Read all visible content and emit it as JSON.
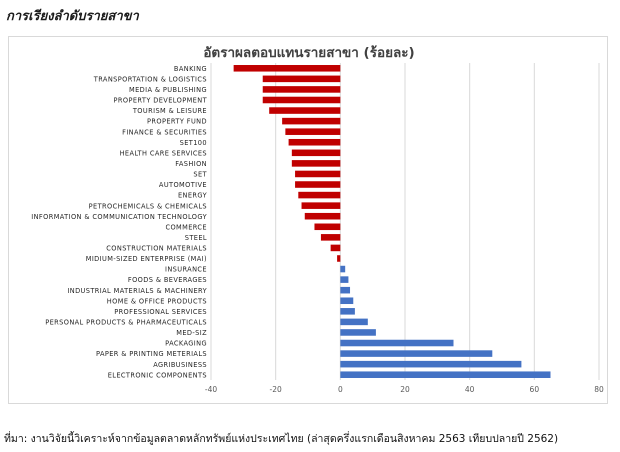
{
  "heading": "การเรียงลำดับรายสาขา",
  "source_note": "ที่มา: งานวิจัยนี้วิเคราะห์จากข้อมูลตลาดหลักทรัพย์แห่งประเทศไทย (ล่าสุดครึ่งแรกเดือนสิงหาคม 2563 เทียบปลายปี 2562)",
  "colors": {
    "negative": "#c00000",
    "positive": "#4472c4",
    "grid": "#d9d9d9",
    "axis_text": "#595959"
  },
  "chart_data": {
    "type": "bar",
    "orientation": "horizontal",
    "title": "อัตราผลตอบแทนรายสาขา (ร้อยละ)",
    "xlim": [
      -40,
      80
    ],
    "x_ticks": [
      "-40",
      "-20",
      "0",
      "20",
      "40",
      "60",
      "80"
    ],
    "x_tick_values": [
      -40,
      -20,
      0,
      20,
      40,
      60,
      80
    ],
    "grid": "vertical",
    "categories": [
      "BANKING",
      "TRANSPORTATION & LOGISTICS",
      "MEDIA & PUBLISHING",
      "PROPERTY DEVELOPMENT",
      "TOURISM & LEISURE",
      "PROPERTY FUND",
      "FINANCE & SECURITIES",
      "SET100",
      "HEALTH CARE SERVICES",
      "FASHION",
      "SET",
      "AUTOMOTIVE",
      "ENERGY",
      "PETROCHEMICALS & CHEMICALS",
      "INFORMATION & COMMUNICATION TECHNOLOGY",
      "COMMERCE",
      "STEEL",
      "CONSTRUCTION MATERIALS",
      "MIDIUM-SIZED ENTERPRISE (MAI)",
      "INSURANCE",
      "FOODS & BEVERAGES",
      "INDUSTRIAL MATERIALS & MACHINERY",
      "HOME & OFFICE PRODUCTS",
      "PROFESSIONAL SERVICES",
      "PERSONAL PRODUCTS & PHARMACEUTICALS",
      "MED-SIZ",
      "PACKAGING",
      "PAPER & PRINTING METERIALS",
      "AGRIBUSINESS",
      "ELECTRONIC COMPONENTS"
    ],
    "values": [
      -33,
      -24,
      -24,
      -24,
      -22,
      -18,
      -17,
      -16,
      -15,
      -15,
      -14,
      -14,
      -13,
      -12,
      -11,
      -8,
      -6,
      -3,
      -1,
      1.5,
      2.5,
      3,
      4,
      4.5,
      8.5,
      11,
      35,
      47,
      56,
      65
    ]
  }
}
